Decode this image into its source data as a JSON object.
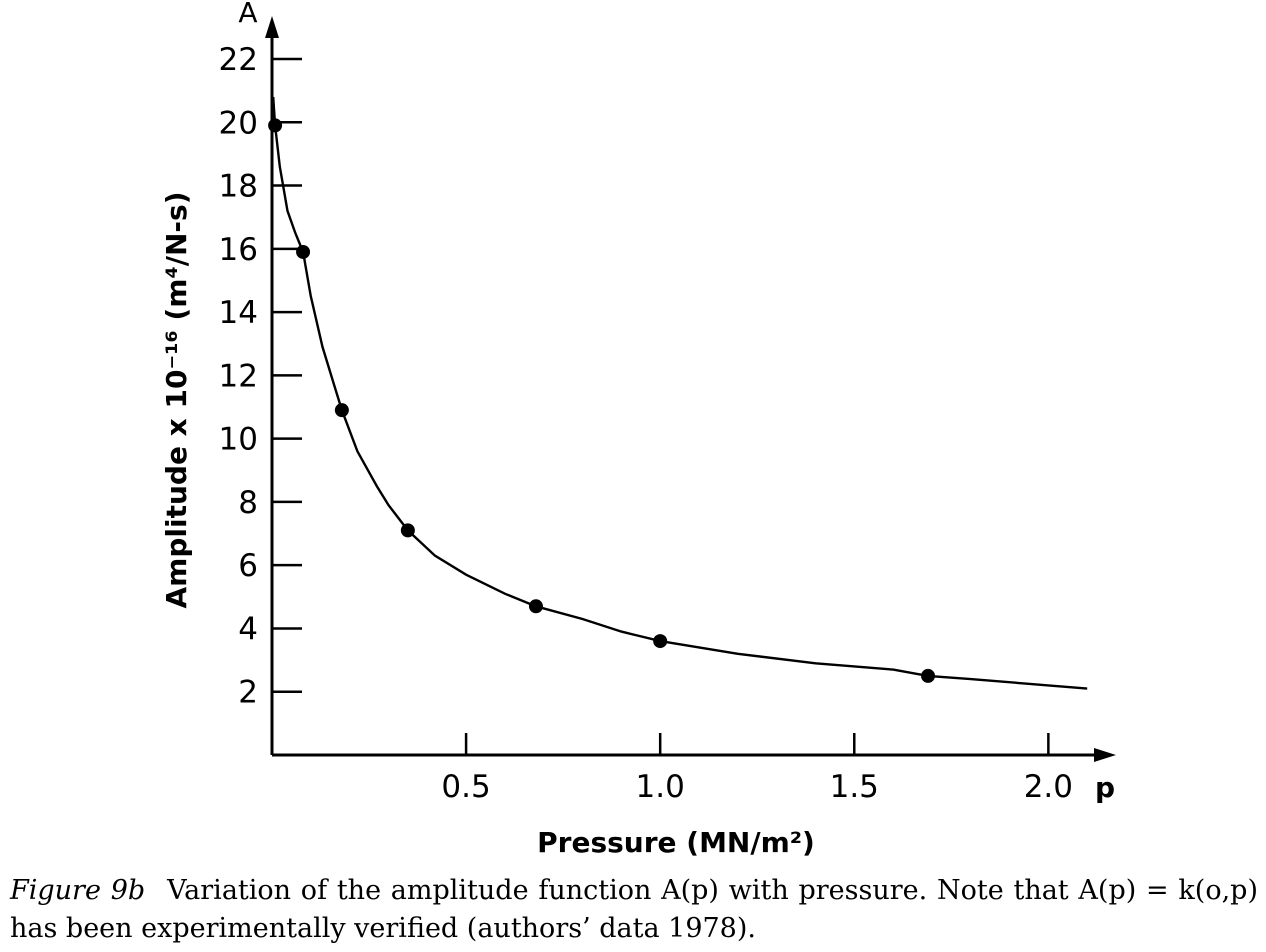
{
  "chart_data": {
    "type": "line",
    "title": "",
    "xlabel": "Pressure (MN/m²)",
    "ylabel": "Amplitude x 10⁻¹⁶ (m⁴/N-s)",
    "x_axis_symbol": "p",
    "y_axis_symbol": "A",
    "xlim": [
      0,
      2.2
    ],
    "ylim": [
      0,
      23
    ],
    "x_ticks": [
      0.5,
      1.0,
      1.5,
      2.0
    ],
    "x_tick_labels": [
      "0.5",
      "1.0",
      "1.5",
      "2.0"
    ],
    "y_ticks": [
      2,
      4,
      6,
      8,
      10,
      12,
      14,
      16,
      18,
      20,
      22
    ],
    "y_tick_labels": [
      "2",
      "4",
      "6",
      "8",
      "10",
      "12",
      "14",
      "16",
      "18",
      "20",
      "22"
    ],
    "grid": false,
    "series": [
      {
        "kind": "points",
        "x": [
          0.008,
          0.08,
          0.18,
          0.35,
          0.68,
          1.0,
          1.69
        ],
        "y": [
          19.9,
          15.9,
          10.9,
          7.1,
          4.7,
          3.6,
          2.5
        ]
      },
      {
        "kind": "curve",
        "x": [
          0.003,
          0.008,
          0.02,
          0.04,
          0.06,
          0.08,
          0.1,
          0.13,
          0.16,
          0.18,
          0.22,
          0.27,
          0.3,
          0.35,
          0.42,
          0.5,
          0.6,
          0.68,
          0.8,
          0.9,
          1.0,
          1.2,
          1.4,
          1.6,
          1.69,
          1.8,
          2.0,
          2.1
        ],
        "y": [
          20.8,
          19.9,
          18.6,
          17.2,
          16.5,
          15.9,
          14.5,
          12.9,
          11.7,
          10.9,
          9.6,
          8.5,
          7.9,
          7.1,
          6.3,
          5.7,
          5.1,
          4.7,
          4.3,
          3.9,
          3.6,
          3.2,
          2.9,
          2.7,
          2.5,
          2.4,
          2.2,
          2.1
        ]
      }
    ]
  },
  "caption": {
    "label": "Figure 9b",
    "text": "Variation of the amplitude function A(p) with pressure. Note that A(p) = k(o,p) has been experimentally verified (authors’ data 1978)."
  }
}
